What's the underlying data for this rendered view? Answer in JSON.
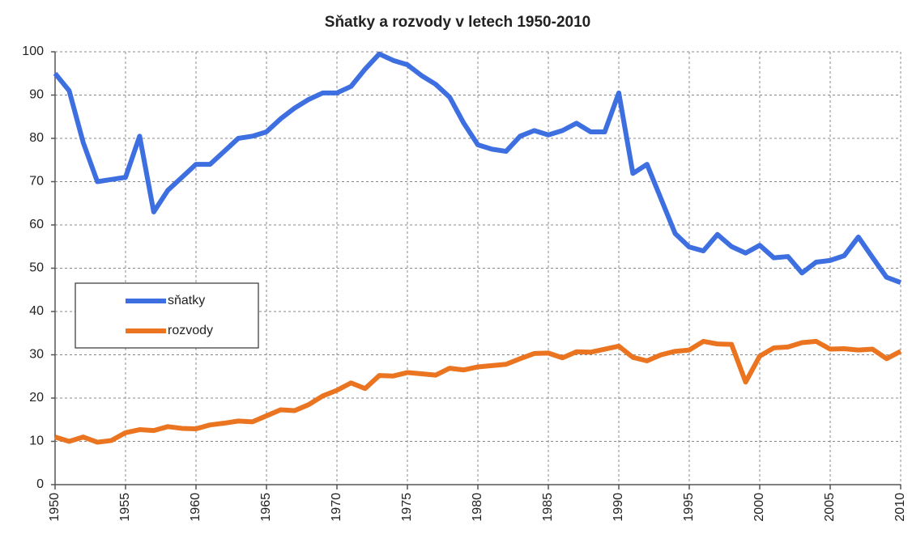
{
  "chart_data": {
    "type": "line",
    "title": "Sňatky a rozvody v letech 1950-2010",
    "x": [
      1950,
      1951,
      1952,
      1953,
      1954,
      1955,
      1956,
      1957,
      1958,
      1959,
      1960,
      1961,
      1962,
      1963,
      1964,
      1965,
      1966,
      1967,
      1968,
      1969,
      1970,
      1971,
      1972,
      1973,
      1974,
      1975,
      1976,
      1977,
      1978,
      1979,
      1980,
      1981,
      1982,
      1983,
      1984,
      1985,
      1986,
      1987,
      1988,
      1989,
      1990,
      1991,
      1992,
      1993,
      1994,
      1995,
      1996,
      1997,
      1998,
      1999,
      2000,
      2001,
      2002,
      2003,
      2004,
      2005,
      2006,
      2007,
      2008,
      2009,
      2010
    ],
    "series": [
      {
        "name": "sňatky",
        "color": "#3e6fe0",
        "values": [
          95,
          91,
          79,
          70,
          70.5,
          71,
          80.5,
          63,
          68,
          71,
          74,
          74,
          77,
          80,
          80.5,
          81.5,
          84.5,
          87,
          89,
          90.5,
          90.5,
          92,
          96,
          99.5,
          98,
          97,
          94.5,
          92.5,
          89.5,
          83.5,
          78.5,
          77.5,
          77,
          80.5,
          81.8,
          80.8,
          81.8,
          83.5,
          81.5,
          81.5,
          90.5,
          71.9,
          74,
          66,
          58,
          54.9,
          54,
          57.8,
          55,
          53.5,
          55.3,
          52.4,
          52.7,
          48.9,
          51.4,
          51.8,
          52.9,
          57.2,
          52.5,
          47.9,
          46.7
        ]
      },
      {
        "name": "rozvody",
        "color": "#ea7420",
        "values": [
          11,
          10,
          11,
          9.8,
          10.2,
          12,
          12.7,
          12.5,
          13.4,
          13,
          12.9,
          13.8,
          14.2,
          14.7,
          14.5,
          15.9,
          17.3,
          17.1,
          18.5,
          20.5,
          21.8,
          23.5,
          22.2,
          25.2,
          25.1,
          25.9,
          25.6,
          25.3,
          26.9,
          26.5,
          27.2,
          27.5,
          27.8,
          29.1,
          30.3,
          30.4,
          29.3,
          30.7,
          30.6,
          31.3,
          32,
          29.4,
          28.6,
          30,
          30.8,
          31.1,
          33.1,
          32.5,
          32.4,
          23.7,
          29.7,
          31.6,
          31.8,
          32.8,
          33.1,
          31.3,
          31.4,
          31.1,
          31.3,
          29.1,
          30.8
        ]
      }
    ],
    "xlim": [
      1950,
      2010
    ],
    "xticks": [
      1950,
      1955,
      1960,
      1965,
      1970,
      1975,
      1980,
      1985,
      1990,
      1995,
      2000,
      2005,
      2010
    ],
    "ylim": [
      0,
      100
    ],
    "yticks": [
      0,
      10,
      20,
      30,
      40,
      50,
      60,
      70,
      80,
      90,
      100
    ],
    "grid": true,
    "legend": "left"
  }
}
